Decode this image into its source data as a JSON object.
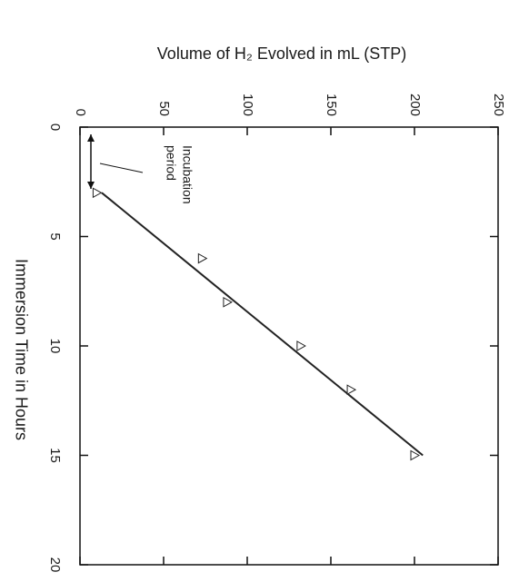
{
  "chart_data": {
    "type": "scatter",
    "x_label": "Immersion Time in Hours",
    "y_label": "Volume of H₂ Evolved in mL (STP)",
    "x": [
      3,
      6,
      8,
      10,
      12,
      15
    ],
    "values": [
      10,
      73,
      88,
      132,
      162,
      200
    ],
    "fit": {
      "x": [
        3,
        15
      ],
      "values": [
        13,
        205
      ]
    },
    "xlim": [
      0,
      20
    ],
    "xticks": [
      0,
      5,
      10,
      15,
      20
    ],
    "ylim": [
      0,
      250
    ],
    "yticks": [
      0,
      50,
      100,
      150,
      200,
      250
    ],
    "annotation": [
      "Incubation",
      "period"
    ],
    "color": "#222222"
  }
}
